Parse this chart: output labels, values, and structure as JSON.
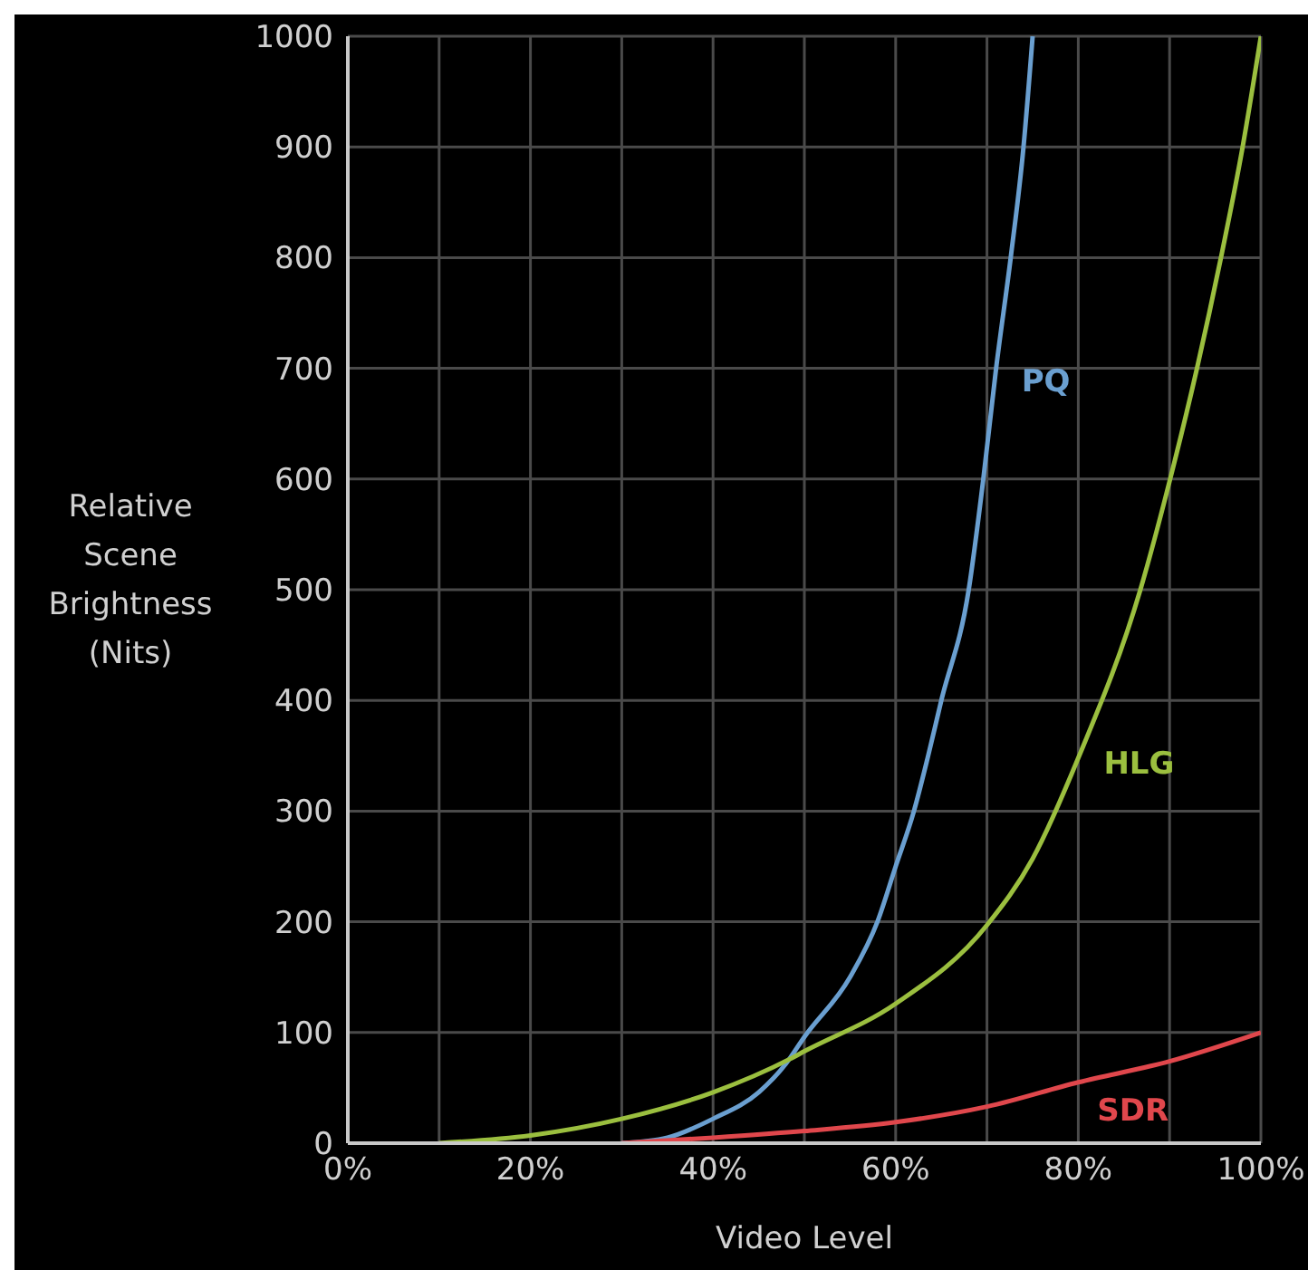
{
  "chart_data": {
    "type": "line",
    "xlabel": "Video Level",
    "ylabel": "Relative Scene Brightness (Nits)",
    "xlim": [
      0,
      100
    ],
    "ylim": [
      0,
      1000
    ],
    "xticks": [
      {
        "value": 0,
        "label": "0%"
      },
      {
        "value": 10,
        "label": null
      },
      {
        "value": 20,
        "label": "20%"
      },
      {
        "value": 30,
        "label": null
      },
      {
        "value": 40,
        "label": "40%"
      },
      {
        "value": 50,
        "label": null
      },
      {
        "value": 60,
        "label": "60%"
      },
      {
        "value": 70,
        "label": null
      },
      {
        "value": 80,
        "label": "80%"
      },
      {
        "value": 90,
        "label": null
      },
      {
        "value": 100,
        "label": "100%"
      }
    ],
    "yticks": [
      0,
      100,
      200,
      300,
      400,
      500,
      600,
      700,
      800,
      900,
      1000
    ],
    "grid": true,
    "marker": "none",
    "line_style": "solid",
    "series": [
      {
        "name": "PQ",
        "color": "#6a9fd0",
        "x": [
          30,
          35,
          40,
          45,
          48,
          50,
          55,
          58,
          60,
          62,
          63.5,
          65,
          68,
          69.6,
          71,
          72.6,
          74,
          75
        ],
        "values": [
          0,
          5,
          22,
          46,
          72,
          96,
          150,
          200,
          250,
          300,
          348,
          400,
          500,
          600,
          700,
          800,
          900,
          1000
        ]
      },
      {
        "name": "HLG",
        "color": "#9bbf3f",
        "x": [
          10,
          20,
          30,
          40,
          48.4,
          50,
          60,
          70,
          75,
          80,
          86.8,
          90,
          93,
          95.6,
          98,
          100
        ],
        "values": [
          0,
          7,
          22,
          46,
          76,
          83,
          126,
          197,
          257,
          348,
          500,
          598,
          700,
          799,
          900,
          1000
        ]
      },
      {
        "name": "SDR",
        "color": "#e0474c",
        "x": [
          30,
          40,
          50,
          60,
          70,
          80,
          90,
          100
        ],
        "values": [
          0,
          5,
          11,
          19,
          33,
          55,
          74,
          100
        ]
      }
    ]
  }
}
